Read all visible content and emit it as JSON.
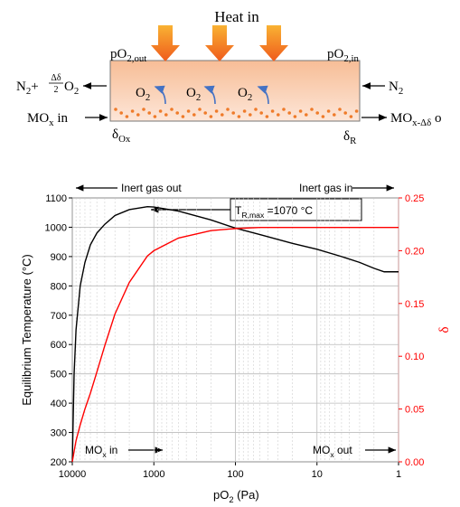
{
  "diagram": {
    "heat": "Heat in",
    "outlet_pressure": [
      "pO",
      "2,out"
    ],
    "inlet_pressure": [
      "pO",
      "2,in"
    ],
    "gas_out": [
      "N",
      "2",
      "+"
    ],
    "gas_out_fraction": {
      "num": "Δδ",
      "den": "2"
    },
    "gas_out_oxygen": [
      "O",
      "2"
    ],
    "gas_in": [
      "N",
      "2"
    ],
    "solid_in": [
      "MO",
      "x",
      " in"
    ],
    "solid_out": [
      "MO",
      "x-Δδ",
      " o"
    ],
    "delta_left": [
      "δ",
      "Ox"
    ],
    "delta_right": [
      "δ",
      "R"
    ],
    "oxygen": [
      [
        "O",
        "2"
      ],
      [
        "O",
        "2"
      ],
      [
        "O",
        "2"
      ]
    ]
  },
  "chart_data": {
    "type": "line",
    "x_label": [
      "pO",
      "2",
      " (Pa)"
    ],
    "y_label": "Equilibrium Temperature (°C)",
    "y2_label": "δ",
    "log_x": true,
    "grid": true,
    "x": [
      10000,
      9500,
      9000,
      8000,
      7000,
      6000,
      5000,
      4000,
      3000,
      2000,
      1200,
      1000,
      500,
      200,
      100,
      50,
      20,
      10,
      5,
      3,
      2,
      1.5,
      1
    ],
    "series": [
      {
        "color": "#000000",
        "values": [
          200,
          500,
          650,
          800,
          880,
          940,
          980,
          1010,
          1040,
          1060,
          1070,
          1069,
          1055,
          1025,
          997,
          975,
          945,
          925,
          900,
          880,
          860,
          848,
          848
        ]
      },
      {
        "color": "#ff0000",
        "axis": "y2",
        "values": [
          0,
          0.01,
          0.02,
          0.035,
          0.05,
          0.065,
          0.085,
          0.11,
          0.14,
          0.17,
          0.195,
          0.2,
          0.212,
          0.219,
          0.221,
          0.222,
          0.222,
          0.222,
          0.222,
          0.222,
          0.222,
          0.222,
          0.222
        ]
      }
    ],
    "xlim": [
      10000,
      1
    ],
    "xticks": [
      10000,
      1000,
      100,
      10,
      1
    ],
    "ylim": [
      200,
      1100
    ],
    "yticks": [
      200,
      300,
      400,
      500,
      600,
      700,
      800,
      900,
      1000,
      1100
    ],
    "y2lim": [
      0,
      0.25
    ],
    "y2ticks": [
      {
        "value": 0,
        "label": "0.00"
      },
      0.05,
      {
        "value": 0.1,
        "label": "0.10"
      },
      0.15,
      {
        "value": 0.2,
        "label": "0.20"
      },
      0.25
    ],
    "y2_color": "#ff0000",
    "annotations": [
      [
        "Inert gas out"
      ],
      [
        "Inert gas in"
      ],
      [
        "T",
        "R,max",
        " =1070 °C"
      ],
      [
        "MO",
        "x",
        " in"
      ],
      [
        "MO",
        "x",
        " out"
      ]
    ]
  }
}
